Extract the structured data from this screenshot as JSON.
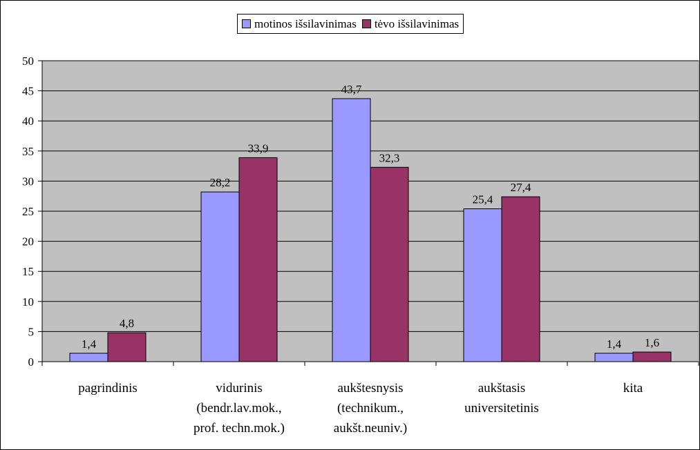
{
  "chart_data": {
    "type": "bar",
    "categories": [
      "pagrindinis",
      "vidurinis\n(bendr.lav.mok.,\nprof. techn.mok.)",
      "aukštesnysis\n(technikum.,\naukšt.neuniv.)",
      "aukštasis\nuniversitetinis",
      "kita"
    ],
    "series": [
      {
        "name": "motinos išsilavinimas",
        "values": [
          1.4,
          28.2,
          43.7,
          25.4,
          1.4
        ],
        "labels": [
          "1,4",
          "28,2",
          "43,7",
          "25,4",
          "1,4"
        ],
        "color": "#9999ff"
      },
      {
        "name": "tėvo išsilavinimas",
        "values": [
          4.8,
          33.9,
          32.3,
          27.4,
          1.6
        ],
        "labels": [
          "4,8",
          "33,9",
          "32,3",
          "27,4",
          "1,6"
        ],
        "color": "#993366"
      }
    ],
    "ylim": [
      0,
      50
    ],
    "yticks": [
      0,
      5,
      10,
      15,
      20,
      25,
      30,
      35,
      40,
      45,
      50
    ],
    "grid": true,
    "plot_background": "#c0c0c0",
    "legend_position": "top-center"
  }
}
